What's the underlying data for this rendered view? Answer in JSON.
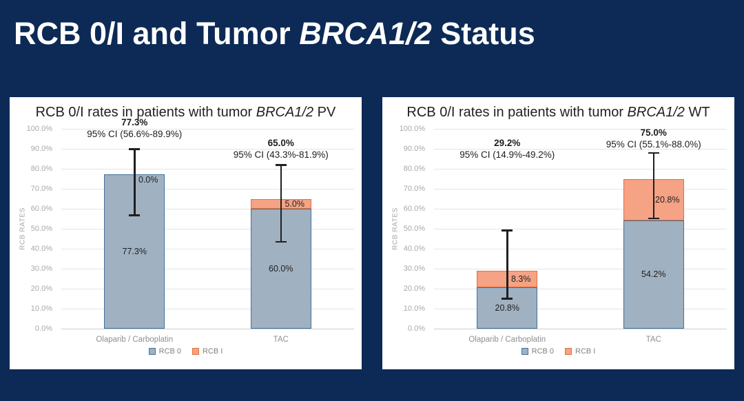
{
  "slide": {
    "title": {
      "prefix": "RCB 0/I and Tumor ",
      "italic": "BRCA1/2",
      "suffix": " Status"
    },
    "background_color": "#0c2a55"
  },
  "chart_data": [
    {
      "type": "bar",
      "stacked": true,
      "grid": true,
      "legend_position": "bottom",
      "title": {
        "prefix": "RCB 0/I rates in patients with tumor ",
        "italic": "BRCA1/2",
        "suffix": " PV"
      },
      "ylabel": "RCB RATES",
      "ylim": [
        0,
        100
      ],
      "yticks": [
        "100.0%",
        "90.0%",
        "80.0%",
        "70.0%",
        "60.0%",
        "50.0%",
        "40.0%",
        "30.0%",
        "20.0%",
        "10.0%",
        "0.0%"
      ],
      "categories": [
        "Olaparib / Carboplatin",
        "TAC"
      ],
      "series": [
        {
          "name": "RCB 0",
          "fill": "#a0b1c1",
          "border": "#41719c",
          "values": [
            77.3,
            60.0
          ],
          "data_labels": [
            "77.3%",
            "60.0%"
          ]
        },
        {
          "name": "RCB I",
          "fill": "#f5a285",
          "border": "#e0703a",
          "values": [
            0.0,
            5.0
          ],
          "data_labels": [
            "0.0%",
            "5.0%"
          ]
        }
      ],
      "annotations": [
        {
          "total": "77.3%",
          "ci_text": "95% CI (56.6%-89.9%)",
          "ci_low": 56.6,
          "ci_high": 89.9,
          "top": 28
        },
        {
          "total": "65.0%",
          "ci_text": "95% CI (43.3%-81.9%)",
          "ci_low": 43.3,
          "ci_high": 81.9,
          "top": 58
        }
      ],
      "legend": [
        "RCB 0",
        "RCB I"
      ]
    },
    {
      "type": "bar",
      "stacked": true,
      "grid": true,
      "legend_position": "bottom",
      "title": {
        "prefix": "RCB 0/I rates in patients with tumor ",
        "italic": "BRCA1/2",
        "suffix": " WT"
      },
      "ylabel": "RCB RATES",
      "ylim": [
        0,
        100
      ],
      "yticks": [
        "100.0%",
        "90.0%",
        "80.0%",
        "70.0%",
        "60.0%",
        "50.0%",
        "40.0%",
        "30.0%",
        "20.0%",
        "10.0%",
        "0.0%"
      ],
      "categories": [
        "Olaparib / Carboplatin",
        "TAC"
      ],
      "series": [
        {
          "name": "RCB 0",
          "fill": "#a0b1c1",
          "border": "#41719c",
          "values": [
            20.8,
            54.2
          ],
          "data_labels": [
            "20.8%",
            "54.2%"
          ]
        },
        {
          "name": "RCB I",
          "fill": "#f5a285",
          "border": "#e0703a",
          "values": [
            8.3,
            20.8
          ],
          "data_labels": [
            "8.3%",
            "20.8%"
          ]
        }
      ],
      "annotations": [
        {
          "total": "29.2%",
          "ci_text": "95% CI (14.9%-49.2%)",
          "ci_low": 14.9,
          "ci_high": 49.2,
          "top": 58
        },
        {
          "total": "75.0%",
          "ci_text": "95% CI (55.1%-88.0%)",
          "ci_low": 55.1,
          "ci_high": 88.0,
          "top": 43
        }
      ],
      "legend": [
        "RCB 0",
        "RCB I"
      ]
    }
  ]
}
